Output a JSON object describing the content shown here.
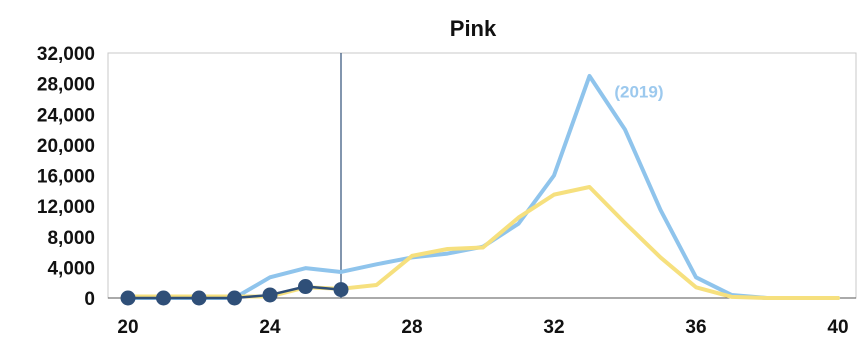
{
  "chart_data": {
    "type": "line",
    "title": "Pink",
    "xlabel": "",
    "ylabel": "",
    "xlim": [
      20,
      40
    ],
    "ylim": [
      0,
      32000
    ],
    "x_ticks": [
      "20",
      "24",
      "28",
      "32",
      "36",
      "40"
    ],
    "y_ticks": [
      "0",
      "4,000",
      "8,000",
      "12,000",
      "16,000",
      "20,000",
      "24,000",
      "28,000",
      "32,000"
    ],
    "grid": false,
    "legend": "none",
    "reference_line_x": 26,
    "annotation": {
      "text": "(2019)",
      "x": 33.7,
      "y": 26200,
      "color": "#9cc9ee"
    },
    "series": [
      {
        "color": "#8fc4ec",
        "style": "line",
        "points": [
          [
            20,
            0
          ],
          [
            21,
            0
          ],
          [
            22,
            0
          ],
          [
            23,
            0
          ],
          [
            24,
            2700
          ],
          [
            25,
            3900
          ],
          [
            26,
            3400
          ],
          [
            27,
            4400
          ],
          [
            28,
            5300
          ],
          [
            29,
            5800
          ],
          [
            30,
            6700
          ],
          [
            31,
            9700
          ],
          [
            32,
            16000
          ],
          [
            33,
            29000
          ],
          [
            34,
            22000
          ],
          [
            35,
            11500
          ],
          [
            36,
            2700
          ],
          [
            37,
            400
          ],
          [
            38,
            0
          ],
          [
            39,
            0
          ],
          [
            40,
            0
          ]
        ]
      },
      {
        "color": "#f6e07e",
        "style": "line",
        "points": [
          [
            20,
            200
          ],
          [
            21,
            200
          ],
          [
            22,
            200
          ],
          [
            23,
            200
          ],
          [
            24,
            200
          ],
          [
            25,
            1400
          ],
          [
            26,
            1200
          ],
          [
            27,
            1700
          ],
          [
            28,
            5500
          ],
          [
            29,
            6400
          ],
          [
            30,
            6600
          ],
          [
            31,
            10500
          ],
          [
            32,
            13500
          ],
          [
            33,
            14500
          ],
          [
            34,
            9800
          ],
          [
            35,
            5300
          ],
          [
            36,
            1400
          ],
          [
            37,
            150
          ],
          [
            38,
            0
          ],
          [
            39,
            0
          ],
          [
            40,
            0
          ]
        ]
      },
      {
        "color": "#2f4f78",
        "style": "line-markers",
        "points": [
          [
            20,
            0
          ],
          [
            21,
            0
          ],
          [
            22,
            0
          ],
          [
            23,
            0
          ],
          [
            24,
            400
          ],
          [
            25,
            1500
          ],
          [
            26,
            1100
          ]
        ]
      }
    ]
  }
}
